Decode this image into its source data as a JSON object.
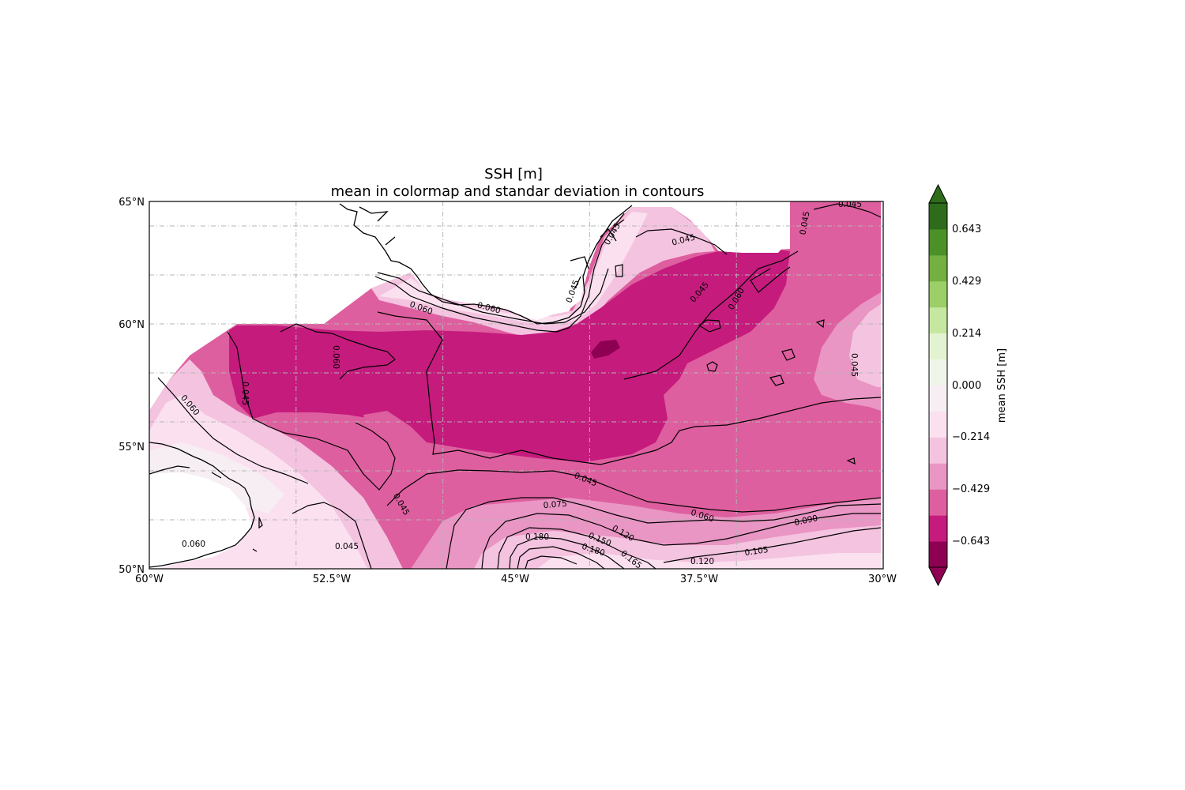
{
  "title": "SSH [m]",
  "subtitle": "mean in colormap and standar deviation in contours",
  "axes": {
    "lon_ticks": [
      "60°W",
      "52.5°W",
      "45°W",
      "37.5°W",
      "30°W"
    ],
    "lat_ticks": [
      "65°N",
      "60°N",
      "55°N",
      "50°N"
    ]
  },
  "colorbar": {
    "label": "mean SSH [m]",
    "ticks": [
      "0.643",
      "0.429",
      "0.214",
      "0.000",
      "−0.214",
      "−0.429",
      "−0.643"
    ],
    "colors": [
      "#8e0152",
      "#c51b7d",
      "#de5f9f",
      "#e996c4",
      "#f4c3e0",
      "#fbe0ef",
      "#f6eef3",
      "#f0f5ea",
      "#e3f3d1",
      "#c6e7a0",
      "#9ccf68",
      "#73b03f",
      "#4c9128",
      "#2e6b1a"
    ],
    "extend": "both"
  },
  "contour_labels": [
    "0.045",
    "0.060",
    "0.075",
    "0.090",
    "0.105",
    "0.120",
    "0.150",
    "0.165",
    "0.180"
  ],
  "colors": {
    "land": "#ffffff",
    "coast": "#000000",
    "grid": "#b4b4b4"
  },
  "chart_data": {
    "type": "heatmap",
    "title": "SSH [m]",
    "subtitle": "mean in colormap and standar deviation in contours",
    "x_range": [
      -60,
      -30
    ],
    "y_range": [
      50,
      65
    ],
    "x_ticks": [
      -60,
      -52.5,
      -45,
      -37.5,
      -30
    ],
    "y_ticks": [
      50,
      55,
      60,
      65
    ],
    "colorbar_range": [
      -0.75,
      0.75
    ],
    "colorbar_ticks": [
      0.643,
      0.429,
      0.214,
      0.0,
      -0.214,
      -0.429,
      -0.643
    ],
    "colorbar_label": "mean SSH [m]",
    "contour_levels": [
      0.045,
      0.06,
      0.075,
      0.09,
      0.105,
      0.12,
      0.15,
      0.165,
      0.18
    ],
    "grid": true
  }
}
